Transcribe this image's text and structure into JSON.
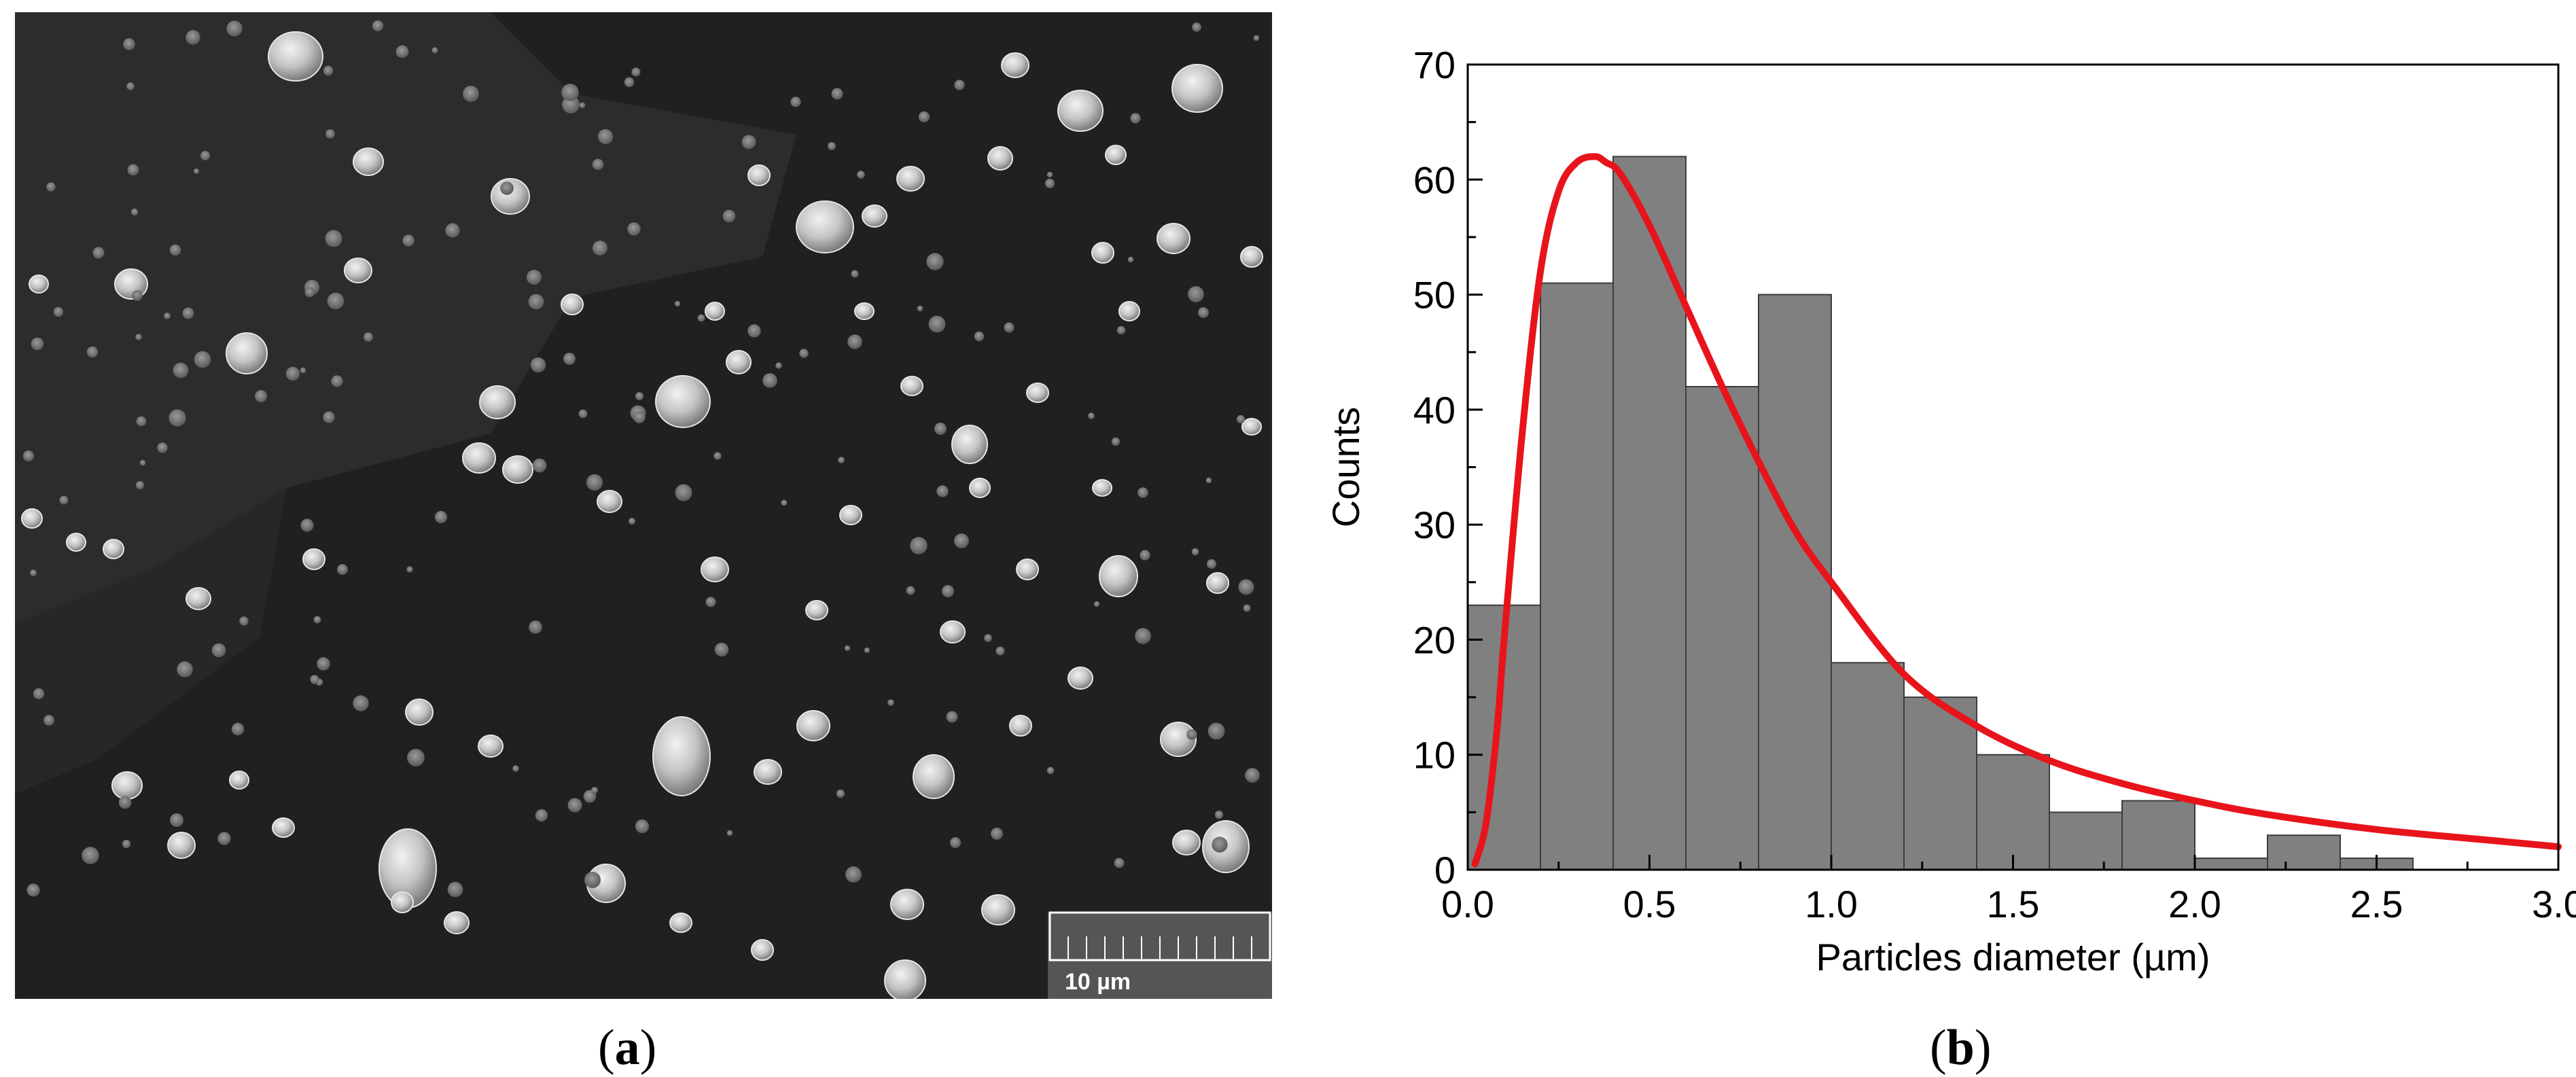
{
  "panel_a": {
    "caption_open": "(",
    "caption_letter": "a",
    "caption_close": ")",
    "scale_bar_label": "10 µm"
  },
  "panel_b": {
    "caption_open": "(",
    "caption_letter": "b",
    "caption_close": ")"
  },
  "colors": {
    "bar_fill": "#808080",
    "bar_stroke": "#3c3c3c",
    "fit_line": "#e8141b",
    "sem_background": "#202020",
    "particle": "#c8c8c8"
  },
  "chart_data": {
    "type": "bar",
    "xlabel": "Particles diameter (µm)",
    "ylabel": "Counts",
    "xlim": [
      0.0,
      3.0
    ],
    "ylim": [
      0,
      70
    ],
    "x_ticks": [
      "0.0",
      "0.5",
      "1.0",
      "1.5",
      "2.0",
      "2.5",
      "3.0"
    ],
    "y_ticks": [
      "0",
      "10",
      "20",
      "30",
      "40",
      "50",
      "60",
      "70"
    ],
    "bins": [
      {
        "x0": 0.0,
        "x1": 0.2,
        "count": 23
      },
      {
        "x0": 0.2,
        "x1": 0.4,
        "count": 51
      },
      {
        "x0": 0.4,
        "x1": 0.6,
        "count": 62
      },
      {
        "x0": 0.6,
        "x1": 0.8,
        "count": 42
      },
      {
        "x0": 0.8,
        "x1": 1.0,
        "count": 50
      },
      {
        "x0": 1.0,
        "x1": 1.2,
        "count": 18
      },
      {
        "x0": 1.2,
        "x1": 1.4,
        "count": 15
      },
      {
        "x0": 1.4,
        "x1": 1.6,
        "count": 10
      },
      {
        "x0": 1.6,
        "x1": 1.8,
        "count": 5
      },
      {
        "x0": 1.8,
        "x1": 2.0,
        "count": 6
      },
      {
        "x0": 2.0,
        "x1": 2.2,
        "count": 1
      },
      {
        "x0": 2.2,
        "x1": 2.4,
        "count": 3
      },
      {
        "x0": 2.4,
        "x1": 2.6,
        "count": 1
      }
    ],
    "fit_curve": {
      "type": "lognormal",
      "x": [
        0.02,
        0.05,
        0.08,
        0.1,
        0.15,
        0.2,
        0.25,
        0.3,
        0.35,
        0.38,
        0.42,
        0.5,
        0.6,
        0.7,
        0.8,
        0.9,
        1.0,
        1.2,
        1.4,
        1.6,
        1.8,
        2.0,
        2.2,
        2.5,
        2.8,
        3.0
      ],
      "y": [
        0.5,
        4,
        12,
        20,
        38,
        52,
        59,
        61.5,
        62,
        61.5,
        60.5,
        56,
        49,
        42,
        35.5,
        29.5,
        25,
        17,
        12.5,
        9.5,
        7.5,
        6,
        4.8,
        3.5,
        2.6,
        2
      ]
    }
  }
}
